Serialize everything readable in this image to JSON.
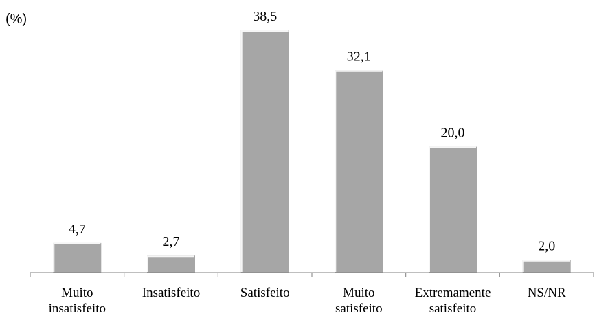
{
  "chart_data": {
    "type": "bar",
    "unit_label": "(%)",
    "categories": [
      [
        "Muito",
        "insatisfeito"
      ],
      [
        "Insatisfeito"
      ],
      [
        "Satisfeito"
      ],
      [
        "Muito",
        "satisfeito"
      ],
      [
        "Extremamente",
        "satisfeito"
      ],
      [
        "NS/NR"
      ]
    ],
    "values": [
      4.7,
      2.7,
      38.5,
      32.1,
      20.0,
      2.0
    ],
    "value_labels": [
      "4,7",
      "2,7",
      "38,5",
      "32,1",
      "20,0",
      "2,0"
    ],
    "ylim": [
      0,
      38.5
    ],
    "grid": false,
    "legend": "none",
    "bar_color": "#a6a6a6"
  }
}
